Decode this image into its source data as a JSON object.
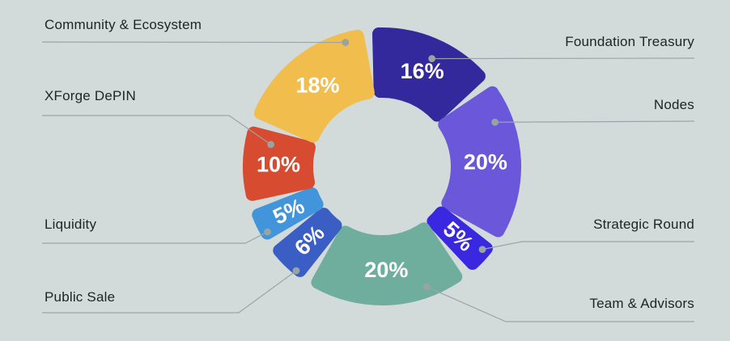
{
  "colors": {
    "background": "#d2dbda",
    "connector_line": "#9aa6a5",
    "connector_dot": "#98a3a2",
    "callout_text": "#1d2423",
    "percent_text": "#ffffff"
  },
  "chart_data": {
    "type": "pie",
    "subtype": "donut",
    "direction": "clockwise",
    "start_angle_deg": -6,
    "legend_position": "callout-labels-both-sides",
    "slices": [
      {
        "label": "Foundation Treasury",
        "value": 16,
        "display": "16%",
        "color": "#33289c",
        "label_side": "right"
      },
      {
        "label": "Nodes",
        "value": 20,
        "display": "20%",
        "color": "#6a57d9",
        "label_side": "right"
      },
      {
        "label": "Strategic Round",
        "value": 5,
        "display": "5%",
        "color": "#3a28e0",
        "label_side": "right"
      },
      {
        "label": "Team & Advisors",
        "value": 20,
        "display": "20%",
        "color": "#6fae9c",
        "label_side": "right"
      },
      {
        "label": "Public Sale",
        "value": 6,
        "display": "6%",
        "color": "#3b5ec5",
        "label_side": "left"
      },
      {
        "label": "Liquidity",
        "value": 5,
        "display": "5%",
        "color": "#4295db",
        "label_side": "left"
      },
      {
        "label": "XForge DePIN",
        "value": 10,
        "display": "10%",
        "color": "#d74b31",
        "label_side": "left"
      },
      {
        "label": "Community & Ecosystem",
        "value": 18,
        "display": "18%",
        "color": "#f1bd4d",
        "label_side": "left"
      }
    ]
  }
}
